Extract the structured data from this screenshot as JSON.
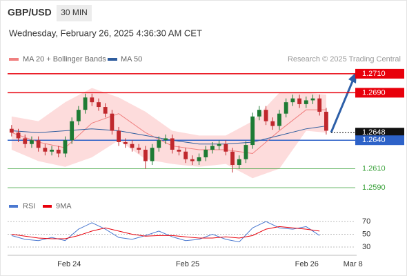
{
  "chart_data": {
    "type": "candlestick",
    "title": "GBP/USD",
    "interval": "30 MIN",
    "subtitle": "Wednesday, February 26, 2025 4:36:30 AM CET",
    "source": "Research © 2025 Trading Central",
    "xlim": [
      -0.5,
      50
    ],
    "ylim": [
      1.2581,
      1.2715
    ],
    "xticks": [
      {
        "value": 8.6,
        "label": "Feb 24"
      },
      {
        "value": 26.3,
        "label": "Feb 25"
      },
      {
        "value": 44.1,
        "label": "Feb 26"
      },
      {
        "value": 51.0,
        "label": "Mar 8"
      }
    ],
    "candles": {
      "up_color": "#1e7b34",
      "down_color": "#c0282d",
      "open": [
        1.2652,
        1.2648,
        1.2642,
        1.2636,
        1.264,
        1.2632,
        1.2628,
        1.263,
        1.2626,
        1.264,
        1.266,
        1.2672,
        1.2685,
        1.268,
        1.2675,
        1.2668,
        1.265,
        1.2638,
        1.2636,
        1.2632,
        1.263,
        1.2618,
        1.2632,
        1.264,
        1.2642,
        1.263,
        1.2628,
        1.262,
        1.2618,
        1.2622,
        1.263,
        1.2634,
        1.2636,
        1.2628,
        1.2614,
        1.262,
        1.2635,
        1.2665,
        1.2672,
        1.266,
        1.2655,
        1.2668,
        1.268,
        1.2684,
        1.2678,
        1.2682,
        1.2684,
        1.267
      ],
      "high": [
        1.2656,
        1.2652,
        1.2646,
        1.2644,
        1.2644,
        1.2636,
        1.2634,
        1.2634,
        1.2644,
        1.2664,
        1.2676,
        1.2689,
        1.2689,
        1.2684,
        1.2679,
        1.2672,
        1.2654,
        1.2642,
        1.264,
        1.2636,
        1.2634,
        1.2636,
        1.2644,
        1.2646,
        1.2646,
        1.2634,
        1.2632,
        1.2624,
        1.2626,
        1.2634,
        1.2638,
        1.264,
        1.264,
        1.2632,
        1.2624,
        1.2639,
        1.2669,
        1.2676,
        1.2676,
        1.2664,
        1.2672,
        1.2684,
        1.2688,
        1.2688,
        1.2686,
        1.2688,
        1.2688,
        1.2674
      ],
      "low": [
        1.2644,
        1.2638,
        1.2632,
        1.2632,
        1.2628,
        1.2624,
        1.2624,
        1.2622,
        1.2622,
        1.2636,
        1.2656,
        1.2668,
        1.2676,
        1.2671,
        1.2664,
        1.2646,
        1.2634,
        1.2632,
        1.2628,
        1.2626,
        1.261,
        1.2614,
        1.2628,
        1.2636,
        1.2626,
        1.2624,
        1.2616,
        1.2614,
        1.2614,
        1.2618,
        1.2626,
        1.263,
        1.2624,
        1.2606,
        1.261,
        1.2616,
        1.2631,
        1.2661,
        1.2656,
        1.2651,
        1.2651,
        1.2664,
        1.2676,
        1.2674,
        1.2674,
        1.2678,
        1.2666,
        1.2646
      ],
      "close": [
        1.2648,
        1.2642,
        1.2636,
        1.264,
        1.2632,
        1.2628,
        1.263,
        1.2626,
        1.264,
        1.266,
        1.2672,
        1.2685,
        1.268,
        1.2675,
        1.2668,
        1.265,
        1.2638,
        1.2636,
        1.2632,
        1.263,
        1.2618,
        1.2632,
        1.264,
        1.2642,
        1.263,
        1.2628,
        1.262,
        1.2618,
        1.2622,
        1.263,
        1.2634,
        1.2636,
        1.2628,
        1.2614,
        1.262,
        1.2635,
        1.2665,
        1.2672,
        1.266,
        1.2655,
        1.2668,
        1.268,
        1.2684,
        1.2678,
        1.2682,
        1.2684,
        1.267,
        1.265
      ]
    },
    "overlays": {
      "x": [
        0,
        4,
        8,
        12,
        16,
        20,
        24,
        28,
        32,
        36,
        40,
        44,
        47
      ],
      "series": [
        {
          "name": "MA 20 + Bollinger Bands",
          "color": "#f08080",
          "band_color": "#fdd3d3",
          "values": [
            1.2648,
            1.2638,
            1.2632,
            1.2658,
            1.2668,
            1.2648,
            1.2634,
            1.263,
            1.263,
            1.2626,
            1.265,
            1.2672,
            1.2672
          ],
          "upper": [
            1.2665,
            1.266,
            1.268,
            1.2695,
            1.2685,
            1.267,
            1.265,
            1.2645,
            1.2645,
            1.266,
            1.269,
            1.269,
            1.2688
          ],
          "lower": [
            1.263,
            1.2618,
            1.2612,
            1.2622,
            1.264,
            1.262,
            1.2615,
            1.2612,
            1.2615,
            1.26,
            1.261,
            1.265,
            1.2648
          ]
        },
        {
          "name": "MA 50",
          "color": "#2f5d9e",
          "values": [
            1.265,
            1.2648,
            1.265,
            1.2652,
            1.265,
            1.2645,
            1.264,
            1.2636,
            1.2636,
            1.2638,
            1.2645,
            1.2652,
            1.2655
          ]
        }
      ]
    },
    "levels": [
      {
        "value": 1.271,
        "label": "1.2710",
        "color": "#e8000b",
        "style": "box",
        "line": "solid"
      },
      {
        "value": 1.269,
        "label": "1.2690",
        "color": "#e8000b",
        "style": "box",
        "line": "solid"
      },
      {
        "value": 1.2648,
        "label": "1.2648",
        "color": "#111111",
        "style": "box",
        "line": "dotted"
      },
      {
        "value": 1.264,
        "label": "1.2640",
        "color": "#2d62c8",
        "style": "box",
        "line": "solid"
      },
      {
        "value": 1.261,
        "label": "1.2610",
        "color": "#3aa23a",
        "style": "text",
        "line": "thin"
      },
      {
        "value": 1.259,
        "label": "1.2590",
        "color": "#3aa23a",
        "style": "text",
        "line": "thin"
      }
    ],
    "rsi": {
      "ylim": [
        20,
        80
      ],
      "yticks": [
        70,
        50,
        30
      ],
      "x": [
        0,
        2,
        4,
        6,
        8,
        10,
        12,
        14,
        16,
        18,
        20,
        22,
        24,
        26,
        28,
        30,
        32,
        34,
        36,
        38,
        40,
        42,
        44,
        46
      ],
      "series": [
        {
          "name": "RSI",
          "color": "#4a78d0",
          "values": [
            48,
            42,
            40,
            45,
            40,
            58,
            68,
            58,
            45,
            42,
            48,
            55,
            46,
            40,
            42,
            50,
            42,
            38,
            60,
            70,
            60,
            58,
            62,
            48
          ]
        },
        {
          "name": "9MA",
          "color": "#e8000b",
          "values": [
            50,
            47,
            44,
            43,
            43,
            48,
            55,
            60,
            55,
            50,
            47,
            48,
            48,
            46,
            44,
            44,
            46,
            44,
            48,
            58,
            62,
            60,
            58,
            55
          ]
        }
      ]
    }
  }
}
